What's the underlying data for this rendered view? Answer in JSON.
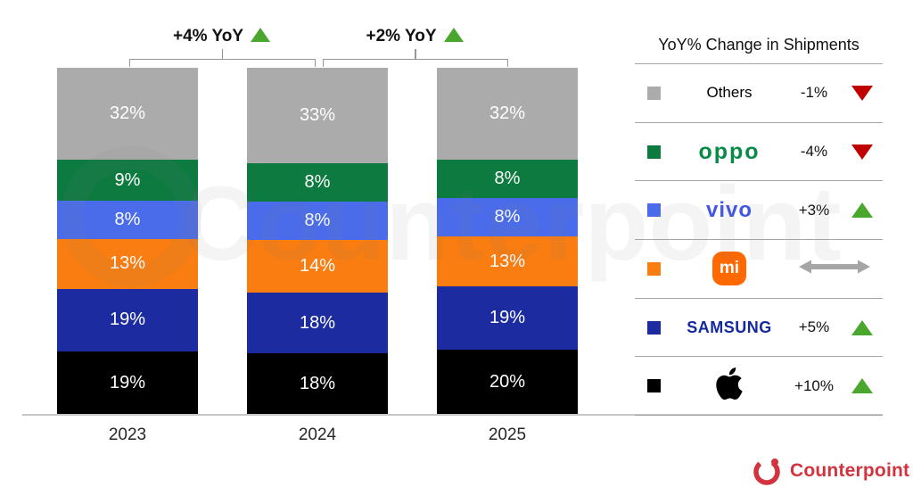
{
  "chart_data": {
    "type": "bar",
    "stacked": true,
    "unit": "%",
    "title": "",
    "categories": [
      "2023",
      "2024",
      "2025"
    ],
    "series_top_to_bottom": [
      {
        "name": "Others",
        "color": "#ABABAB",
        "values": [
          32,
          33,
          32
        ]
      },
      {
        "name": "OPPO",
        "color": "#0D7A40",
        "values": [
          9,
          8,
          8
        ]
      },
      {
        "name": "vivo",
        "color": "#4A6CEA",
        "values": [
          8,
          8,
          8
        ]
      },
      {
        "name": "Xiaomi",
        "color": "#F97D10",
        "values": [
          13,
          14,
          13
        ]
      },
      {
        "name": "Samsung",
        "color": "#1C2CA0",
        "values": [
          19,
          18,
          19
        ]
      },
      {
        "name": "Apple",
        "color": "#000000",
        "values": [
          19,
          18,
          20
        ]
      }
    ],
    "ylim": [
      0,
      100
    ],
    "grid": false,
    "legend_position": "right",
    "annotations": [
      {
        "label": "+4% YoY",
        "direction": "up",
        "between": [
          "2023",
          "2024"
        ]
      },
      {
        "label": "+2% YoY",
        "direction": "up",
        "between": [
          "2024",
          "2025"
        ]
      }
    ]
  },
  "legend": {
    "title": "YoY% Change in Shipments",
    "rows": [
      {
        "brand": "Others",
        "change": "-1%",
        "direction": "down"
      },
      {
        "brand": "OPPO",
        "change": "-4%",
        "direction": "down"
      },
      {
        "brand": "vivo",
        "change": "+3%",
        "direction": "up"
      },
      {
        "brand": "Xiaomi",
        "change": "",
        "direction": "flat"
      },
      {
        "brand": "SAMSUNG",
        "change": "+5%",
        "direction": "up"
      },
      {
        "brand": "Apple",
        "change": "+10%",
        "direction": "up"
      }
    ]
  },
  "watermark": {
    "text": "Counterpoint"
  },
  "footer": {
    "brand": "Counterpoint"
  },
  "colors": {
    "up_triangle": "#4AA72D",
    "down_triangle": "#C00000",
    "flat_arrow": "#A6A6A6",
    "oppo_logo": "#0A8A47",
    "vivo_logo": "#4256E6",
    "samsung_logo": "#1428A0",
    "xiaomi_badge": "#FF6900",
    "counterpoint_red": "#D2333E",
    "axis_line": "#C6C6C6",
    "divider": "#A6A6A6",
    "bracket": "#979797"
  }
}
